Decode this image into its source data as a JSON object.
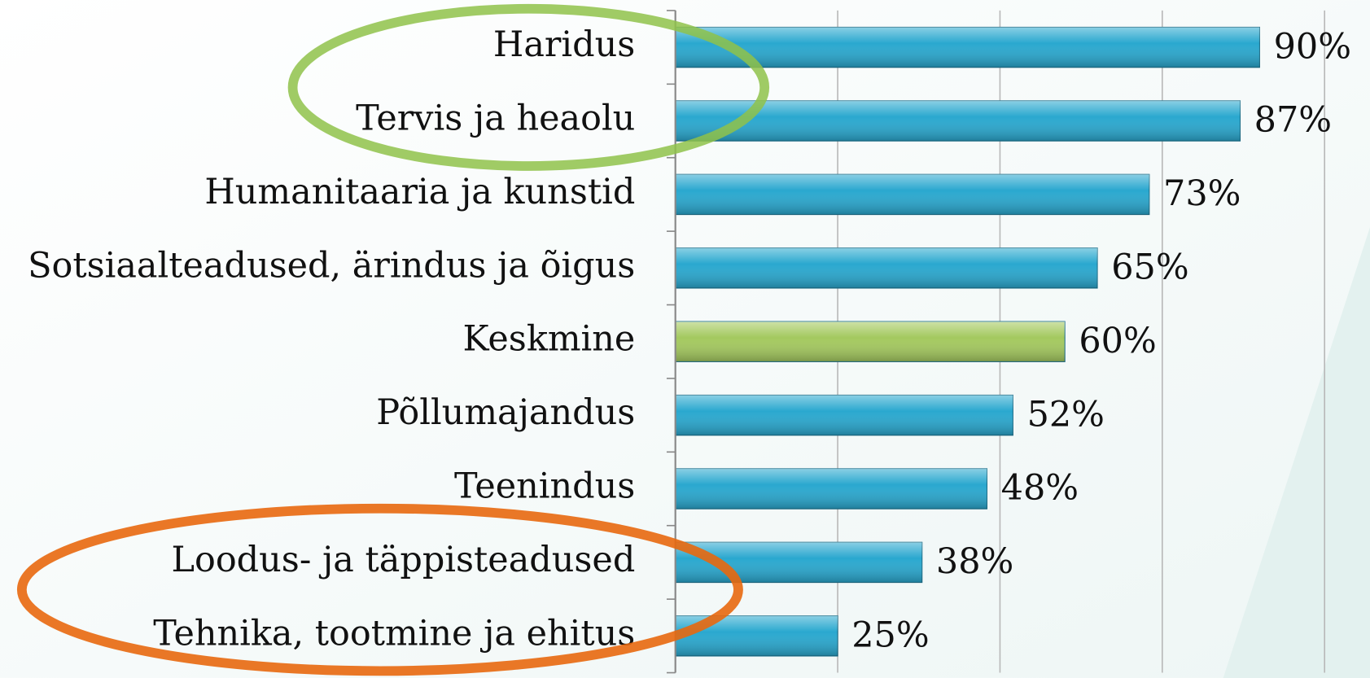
{
  "chart_data": {
    "type": "bar",
    "orientation": "horizontal",
    "categories": [
      "Haridus",
      "Tervis ja heaolu",
      "Humanitaaria ja kunstid",
      "Sotsiaalteadused, ärindus ja õigus",
      "Keskmine",
      "Põllumajandus",
      "Teenindus",
      "Loodus- ja täppisteadused",
      "Tehnika, tootmine ja ehitus"
    ],
    "values": [
      90,
      87,
      73,
      65,
      60,
      52,
      48,
      38,
      25
    ],
    "value_labels": [
      "90%",
      "87%",
      "73%",
      "65%",
      "60%",
      "52%",
      "48%",
      "38%",
      "25%"
    ],
    "colors": [
      "#2aa8cf",
      "#2aa8cf",
      "#2aa8cf",
      "#2aa8cf",
      "#a4c95f",
      "#2aa8cf",
      "#2aa8cf",
      "#2aa8cf",
      "#2aa8cf"
    ],
    "xlim": [
      0,
      100
    ],
    "xticks": [
      0,
      25,
      50,
      75,
      100
    ],
    "grid": true
  }
}
